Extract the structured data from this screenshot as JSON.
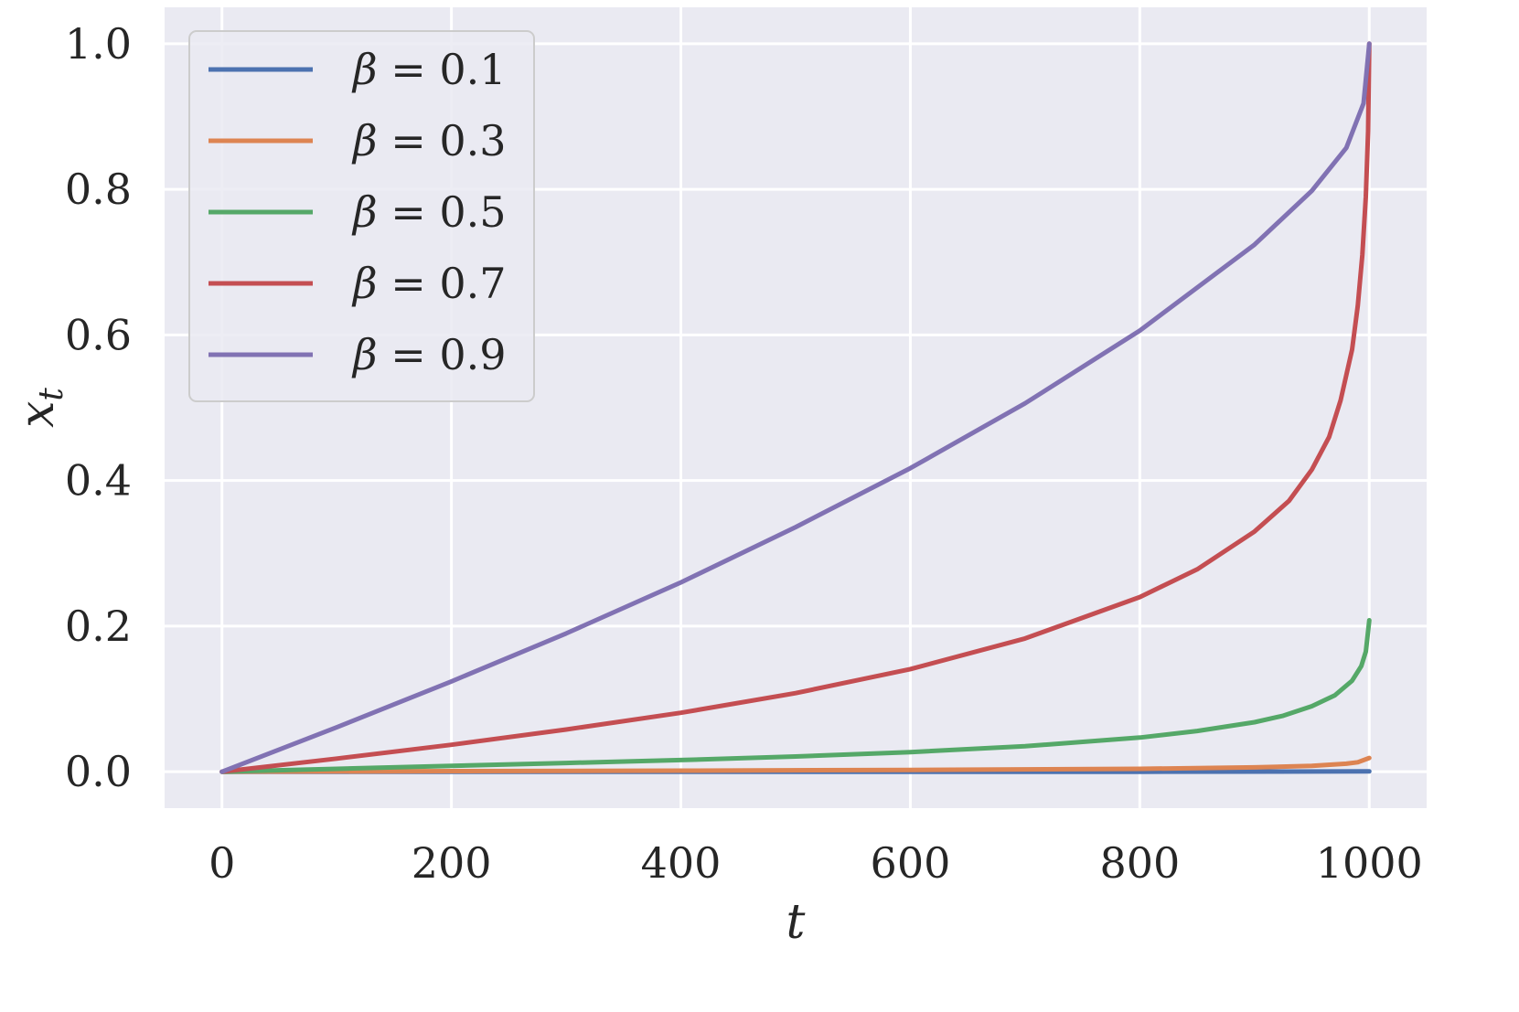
{
  "chart_data": {
    "type": "line",
    "xlabel": "t",
    "ylabel": "x",
    "ylabel_subscript": "t",
    "xlim": [
      -50,
      1050
    ],
    "ylim": [
      -0.05,
      1.05
    ],
    "xticks": [
      0,
      200,
      400,
      600,
      800,
      1000
    ],
    "yticks": [
      0.0,
      0.2,
      0.4,
      0.6,
      0.8,
      1.0
    ],
    "xtick_labels": [
      "0",
      "200",
      "400",
      "600",
      "800",
      "1000"
    ],
    "ytick_labels": [
      "0.0",
      "0.2",
      "0.4",
      "0.6",
      "0.8",
      "1.0"
    ],
    "grid": true,
    "background": "#eaeaf2",
    "grid_color": "#ffffff",
    "legend": {
      "placement": "top-left",
      "prefix": "β",
      "operator": "="
    },
    "series": [
      {
        "name": "0.1",
        "color": "#4c72b0",
        "x": [
          0,
          200,
          400,
          600,
          800,
          1000
        ],
        "y": [
          0,
          0,
          0,
          0,
          0,
          0.0005
        ]
      },
      {
        "name": "0.3",
        "color": "#dd8452",
        "x": [
          0,
          200,
          400,
          600,
          800,
          900,
          950,
          980,
          990,
          1000
        ],
        "y": [
          0,
          0.0008,
          0.0015,
          0.0025,
          0.004,
          0.006,
          0.008,
          0.011,
          0.013,
          0.019
        ]
      },
      {
        "name": "0.5",
        "color": "#55a868",
        "x": [
          0,
          100,
          200,
          300,
          400,
          500,
          600,
          700,
          800,
          850,
          900,
          925,
          950,
          970,
          985,
          993,
          997,
          1000
        ],
        "y": [
          0,
          0.004,
          0.008,
          0.012,
          0.016,
          0.021,
          0.027,
          0.035,
          0.047,
          0.056,
          0.068,
          0.077,
          0.09,
          0.105,
          0.125,
          0.145,
          0.165,
          0.208
        ]
      },
      {
        "name": "0.7",
        "color": "#c44e52",
        "x": [
          0,
          100,
          200,
          300,
          400,
          500,
          600,
          700,
          800,
          850,
          900,
          930,
          950,
          965,
          975,
          985,
          990,
          994,
          997,
          999,
          1000
        ],
        "y": [
          0,
          0.018,
          0.037,
          0.058,
          0.081,
          0.108,
          0.141,
          0.183,
          0.24,
          0.278,
          0.33,
          0.372,
          0.415,
          0.46,
          0.51,
          0.58,
          0.64,
          0.71,
          0.79,
          0.88,
          1.0
        ]
      },
      {
        "name": "0.9",
        "color": "#8172b3",
        "x": [
          0,
          100,
          200,
          300,
          400,
          500,
          600,
          700,
          800,
          900,
          950,
          980,
          995,
          1000
        ],
        "y": [
          0,
          0.061,
          0.124,
          0.19,
          0.26,
          0.336,
          0.417,
          0.506,
          0.606,
          0.724,
          0.798,
          0.857,
          0.918,
          1.0
        ]
      }
    ]
  }
}
